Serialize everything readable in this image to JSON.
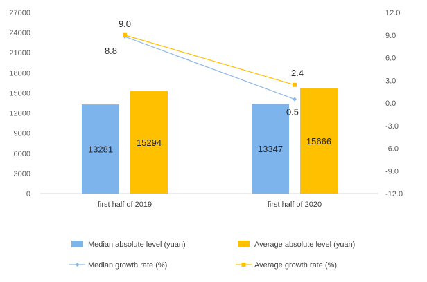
{
  "chart_data": {
    "type": "bar",
    "categories": [
      "first half of 2019",
      "first half of 2020"
    ],
    "series": [
      {
        "name": "Median absolute level (yuan)",
        "kind": "bar",
        "axis": "left",
        "color": "#7EB4EC",
        "values": [
          13281,
          13347
        ]
      },
      {
        "name": "Average absolute level (yuan)",
        "kind": "bar",
        "axis": "left",
        "color": "#FFC000",
        "values": [
          15294,
          15666
        ]
      },
      {
        "name": "Median growth rate (%)",
        "kind": "line",
        "axis": "right",
        "color": "#8DB9E6",
        "marker": "diamond",
        "values": [
          8.8,
          0.5
        ],
        "labels": [
          "8.8",
          "0.5"
        ]
      },
      {
        "name": "Average growth rate (%)",
        "kind": "line",
        "axis": "right",
        "color": "#FFC000",
        "marker": "square",
        "values": [
          9.0,
          2.4
        ],
        "labels": [
          "9.0",
          "2.4"
        ]
      }
    ],
    "bar_labels": [
      [
        "13281",
        "13347"
      ],
      [
        "15294",
        "15666"
      ]
    ],
    "left_axis": {
      "ylim": [
        0,
        27000
      ],
      "ticks": [
        "0",
        "3000",
        "6000",
        "9000",
        "12000",
        "15000",
        "18000",
        "21000",
        "24000",
        "27000"
      ]
    },
    "right_axis": {
      "ylim": [
        -12,
        12
      ],
      "ticks": [
        "-12.0",
        "-9.0",
        "-6.0",
        "-3.0",
        "0.0",
        "3.0",
        "6.0",
        "9.0",
        "12.0"
      ]
    },
    "grid": false,
    "legend_position": "bottom"
  }
}
